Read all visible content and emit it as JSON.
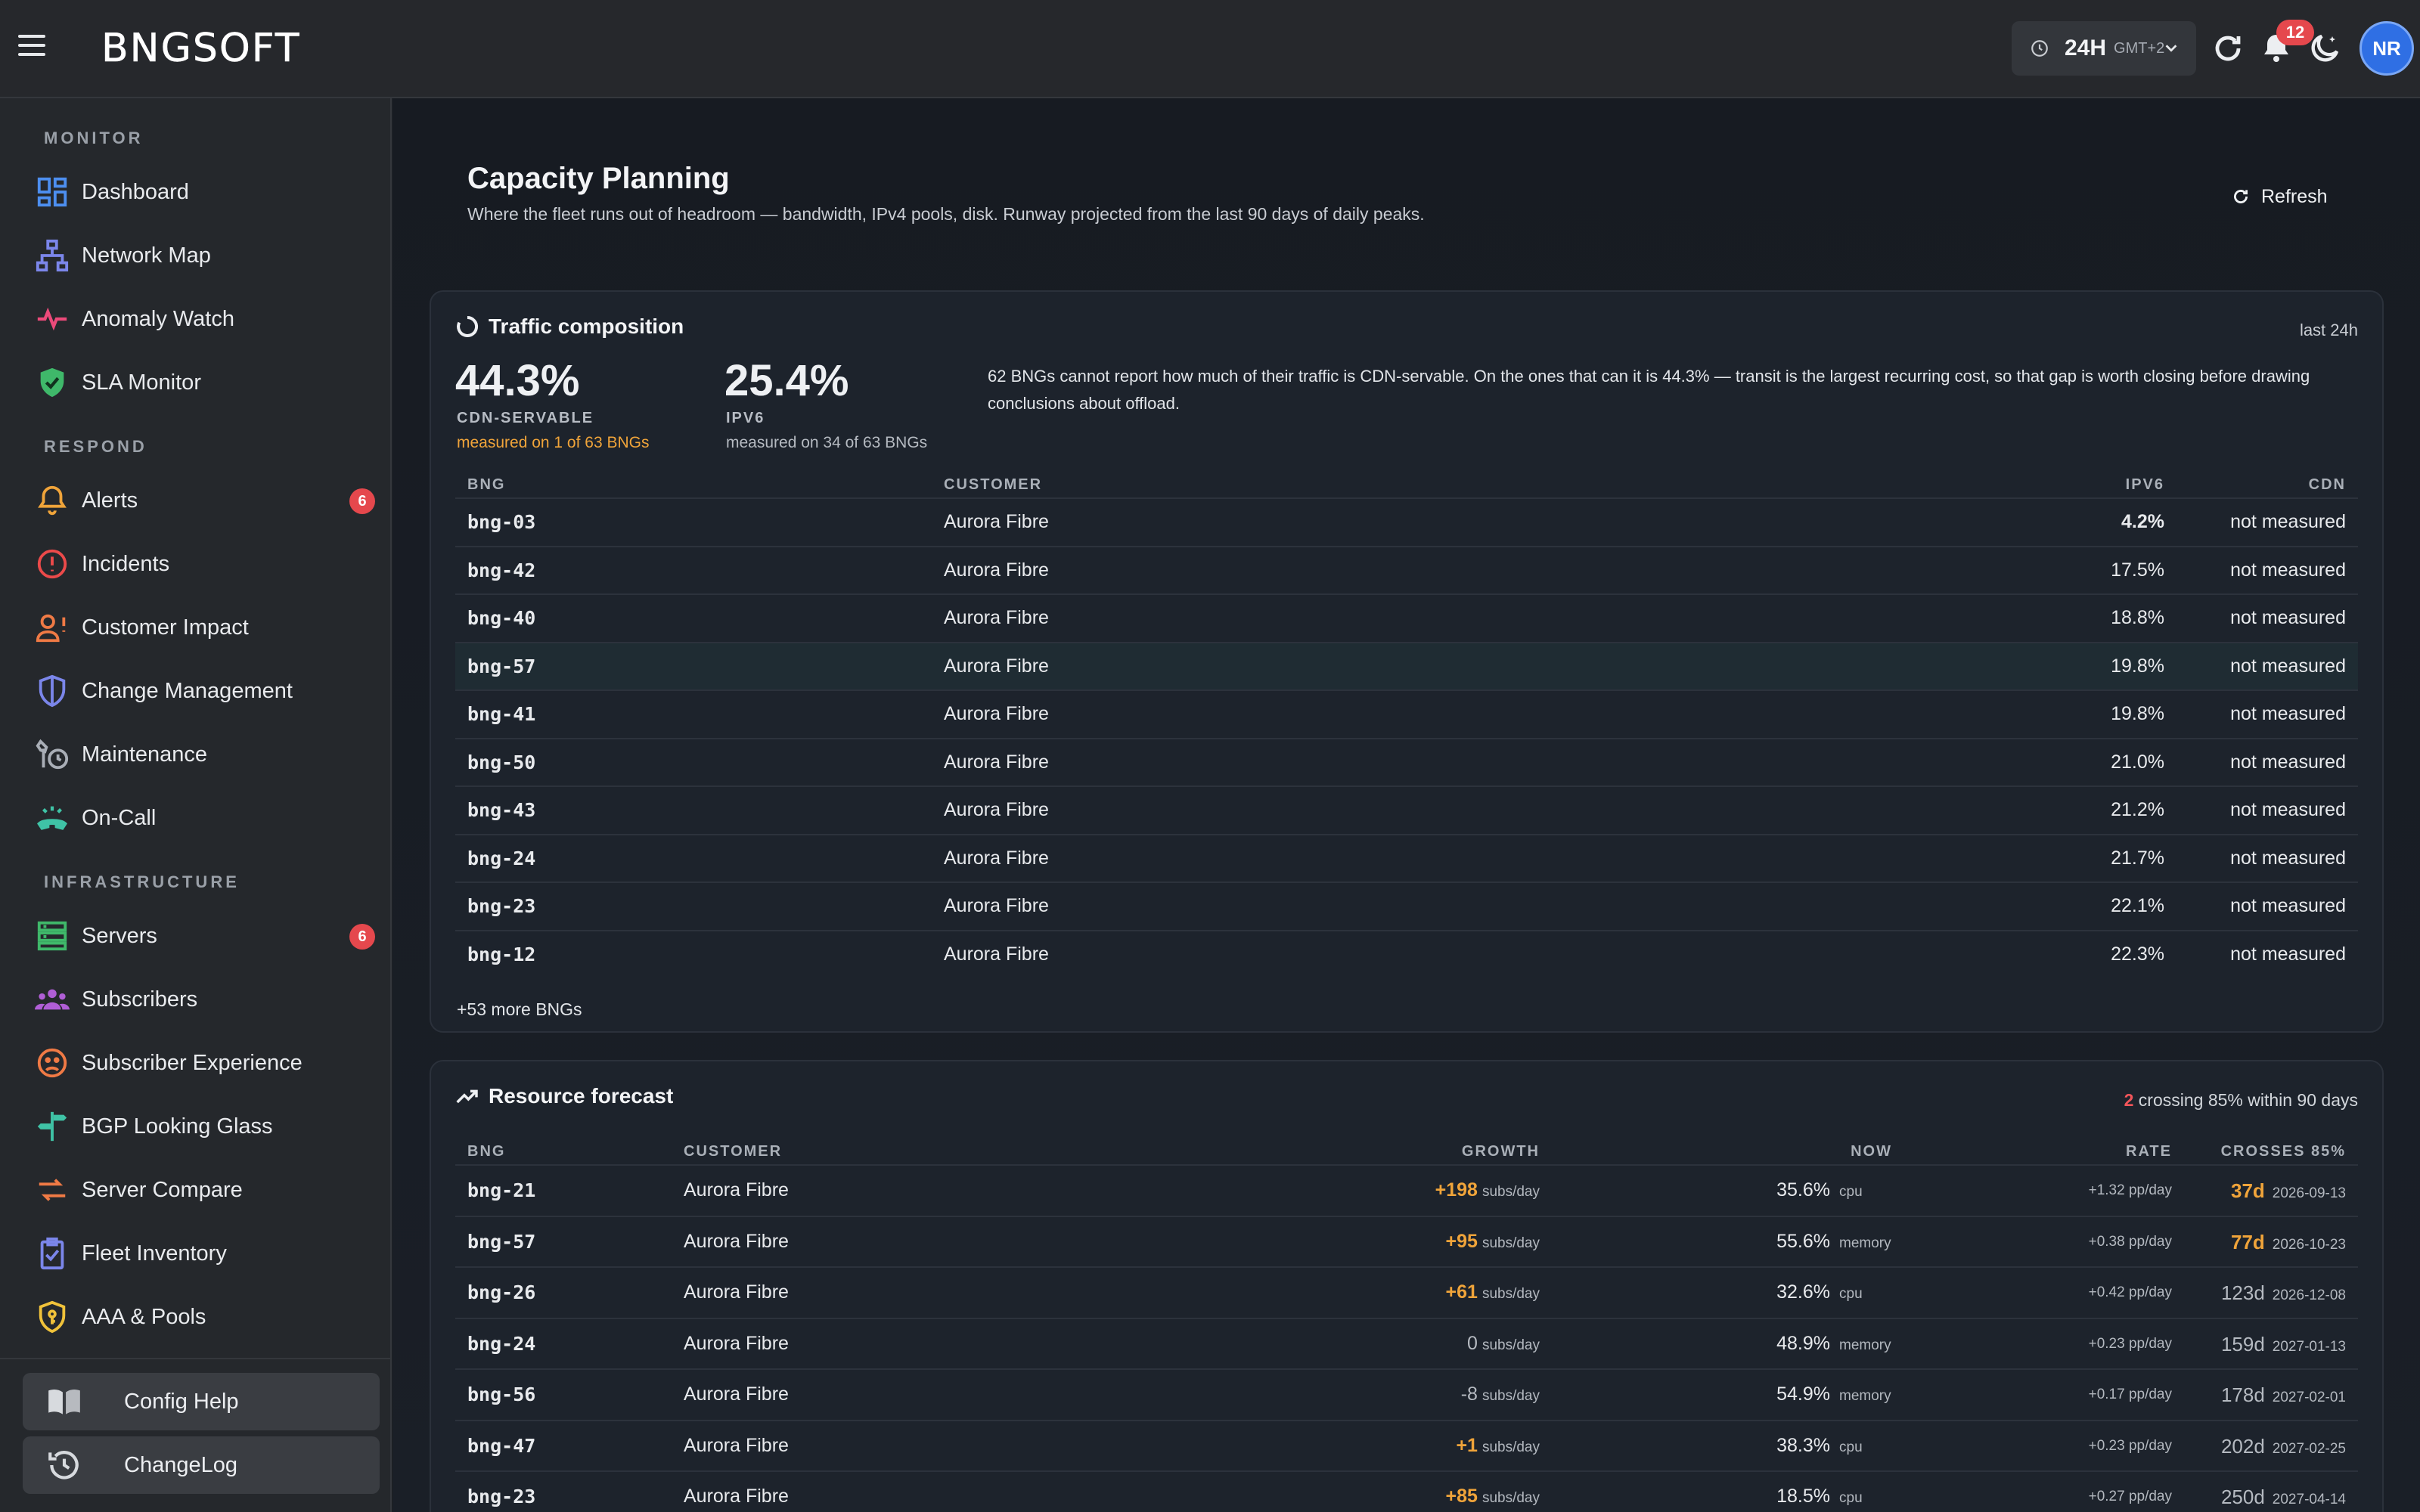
{
  "header": {
    "logo": "BNGSOFT",
    "time_range": "24H",
    "timezone": "GMT+2",
    "notifications_count": "12",
    "avatar_initials": "NR"
  },
  "sidebar": {
    "sections": [
      {
        "title": "MONITOR"
      },
      {
        "title": "RESPOND"
      },
      {
        "title": "INFRASTRUCTURE"
      }
    ],
    "monitor": [
      {
        "label": "Dashboard",
        "icon": "dashboard-icon"
      },
      {
        "label": "Network Map",
        "icon": "network-map-icon"
      },
      {
        "label": "Anomaly Watch",
        "icon": "pulse-icon"
      },
      {
        "label": "SLA Monitor",
        "icon": "shield-check-icon"
      }
    ],
    "respond": [
      {
        "label": "Alerts",
        "icon": "bell-icon",
        "count": "6"
      },
      {
        "label": "Incidents",
        "icon": "alert-circle-icon"
      },
      {
        "label": "Customer Impact",
        "icon": "person-alert-icon"
      },
      {
        "label": "Change Management",
        "icon": "shield-half-icon"
      },
      {
        "label": "Maintenance",
        "icon": "wrench-clock-icon"
      },
      {
        "label": "On-Call",
        "icon": "phone-icon"
      }
    ],
    "infrastructure": [
      {
        "label": "Servers",
        "icon": "server-icon",
        "count": "6"
      },
      {
        "label": "Subscribers",
        "icon": "group-icon"
      },
      {
        "label": "Subscriber Experience",
        "icon": "sad-face-icon"
      },
      {
        "label": "BGP Looking Glass",
        "icon": "signpost-icon"
      },
      {
        "label": "Server Compare",
        "icon": "compare-icon"
      },
      {
        "label": "Fleet Inventory",
        "icon": "clipboard-icon"
      },
      {
        "label": "AAA & Pools",
        "icon": "key-shield-icon"
      }
    ],
    "bottom": [
      {
        "label": "Config Help",
        "icon": "book-icon"
      },
      {
        "label": "ChangeLog",
        "icon": "history-icon"
      }
    ]
  },
  "page": {
    "title": "Capacity Planning",
    "subtitle": "Where the fleet runs out of headroom — bandwidth, IPv4 pools, disk. Runway projected from the last 90 days of daily peaks.",
    "refresh_label": "Refresh"
  },
  "traffic": {
    "title": "Traffic composition",
    "period": "last 24h",
    "cdn_value": "44.3%",
    "cdn_label": "CDN-SERVABLE",
    "cdn_note": "measured on 1 of 63 BNGs",
    "ipv6_value": "25.4%",
    "ipv6_label": "IPV6",
    "ipv6_note": "measured on 34 of 63 BNGs",
    "note": "62 BNGs cannot report how much of their traffic is CDN-servable. On the ones that can it is 44.3% — transit is the largest recurring cost, so that gap is worth closing before drawing conclusions about offload.",
    "columns": {
      "bng": "BNG",
      "customer": "CUSTOMER",
      "ipv6": "IPV6",
      "cdn": "CDN"
    },
    "rows": [
      {
        "bng": "bng-03",
        "customer": "Aurora Fibre",
        "ipv6": "4.2%",
        "cdn": "not measured"
      },
      {
        "bng": "bng-42",
        "customer": "Aurora Fibre",
        "ipv6": "17.5%",
        "cdn": "not measured"
      },
      {
        "bng": "bng-40",
        "customer": "Aurora Fibre",
        "ipv6": "18.8%",
        "cdn": "not measured"
      },
      {
        "bng": "bng-57",
        "customer": "Aurora Fibre",
        "ipv6": "19.8%",
        "cdn": "not measured"
      },
      {
        "bng": "bng-41",
        "customer": "Aurora Fibre",
        "ipv6": "19.8%",
        "cdn": "not measured"
      },
      {
        "bng": "bng-50",
        "customer": "Aurora Fibre",
        "ipv6": "21.0%",
        "cdn": "not measured"
      },
      {
        "bng": "bng-43",
        "customer": "Aurora Fibre",
        "ipv6": "21.2%",
        "cdn": "not measured"
      },
      {
        "bng": "bng-24",
        "customer": "Aurora Fibre",
        "ipv6": "21.7%",
        "cdn": "not measured"
      },
      {
        "bng": "bng-23",
        "customer": "Aurora Fibre",
        "ipv6": "22.1%",
        "cdn": "not measured"
      },
      {
        "bng": "bng-12",
        "customer": "Aurora Fibre",
        "ipv6": "22.3%",
        "cdn": "not measured"
      }
    ],
    "more": "+53 more BNGs"
  },
  "forecast": {
    "title": "Resource forecast",
    "summary_count": "2",
    "summary_text": "crossing 85% within 90 days",
    "columns": {
      "bng": "BNG",
      "customer": "CUSTOMER",
      "growth": "GROWTH",
      "now": "NOW",
      "rate": "RATE",
      "crosses": "CROSSES 85%"
    },
    "growth_unit": "subs/day",
    "rows": [
      {
        "bng": "bng-21",
        "customer": "Aurora Fibre",
        "growth": "+198",
        "now": "35.6%",
        "resource": "cpu",
        "rate": "+1.32 pp/day",
        "days": "37d",
        "date": "2026-09-13"
      },
      {
        "bng": "bng-57",
        "customer": "Aurora Fibre",
        "growth": "+95",
        "now": "55.6%",
        "resource": "memory",
        "rate": "+0.38 pp/day",
        "days": "77d",
        "date": "2026-10-23"
      },
      {
        "bng": "bng-26",
        "customer": "Aurora Fibre",
        "growth": "+61",
        "now": "32.6%",
        "resource": "cpu",
        "rate": "+0.42 pp/day",
        "days": "123d",
        "date": "2026-12-08"
      },
      {
        "bng": "bng-24",
        "customer": "Aurora Fibre",
        "growth": "0",
        "now": "48.9%",
        "resource": "memory",
        "rate": "+0.23 pp/day",
        "days": "159d",
        "date": "2027-01-13"
      },
      {
        "bng": "bng-56",
        "customer": "Aurora Fibre",
        "growth": "-8",
        "now": "54.9%",
        "resource": "memory",
        "rate": "+0.17 pp/day",
        "days": "178d",
        "date": "2027-02-01"
      },
      {
        "bng": "bng-47",
        "customer": "Aurora Fibre",
        "growth": "+1",
        "now": "38.3%",
        "resource": "cpu",
        "rate": "+0.23 pp/day",
        "days": "202d",
        "date": "2027-02-25"
      },
      {
        "bng": "bng-23",
        "customer": "Aurora Fibre",
        "growth": "+85",
        "now": "18.5%",
        "resource": "cpu",
        "rate": "+0.27 pp/day",
        "days": "250d",
        "date": "2027-04-14"
      }
    ]
  },
  "colors": {
    "accent_amber": "#f0a43a",
    "alert_red": "#e5484d",
    "avatar_blue": "#2f6fe4"
  }
}
